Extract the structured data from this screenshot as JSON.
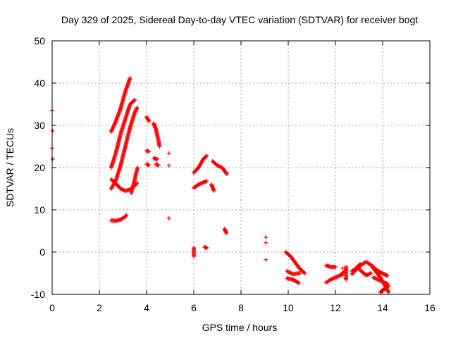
{
  "chart_data": {
    "type": "scatter",
    "title": "Day 329 of 2025, Sidereal Day-to-day VTEC variation (SDTVAR) for receiver bogt",
    "xlabel": "GPS time / hours",
    "ylabel": "SDTVAR / TECUs",
    "xlim": [
      0,
      16
    ],
    "ylim": [
      -10,
      50
    ],
    "x_ticks": [
      0,
      2,
      4,
      6,
      8,
      10,
      12,
      14,
      16
    ],
    "y_ticks": [
      -10,
      0,
      10,
      20,
      30,
      40,
      50
    ],
    "x_tick_labels": [
      "0",
      "2",
      "4",
      "6",
      "8",
      "10",
      "12",
      "14",
      "16"
    ],
    "y_tick_labels": [
      "-10",
      "0",
      "10",
      "20",
      "30",
      "40",
      "50"
    ],
    "grid": true,
    "legend": "none",
    "marker": "+",
    "color": "#ff0000",
    "segments": [
      [
        [
          0.0,
          33.5
        ],
        [
          0.02,
          28.7
        ],
        [
          0.0,
          24.6
        ],
        [
          0.02,
          22.0
        ]
      ],
      [
        [
          2.5,
          28.5
        ],
        [
          2.7,
          31.0
        ],
        [
          2.9,
          34.0
        ],
        [
          3.1,
          38.0
        ],
        [
          3.3,
          41.2
        ]
      ],
      [
        [
          2.5,
          20.0
        ],
        [
          2.7,
          23.5
        ],
        [
          2.9,
          28.0
        ],
        [
          3.1,
          31.5
        ],
        [
          3.3,
          35.0
        ],
        [
          3.5,
          36.0
        ]
      ],
      [
        [
          2.5,
          15.0
        ],
        [
          2.7,
          17.0
        ],
        [
          2.9,
          20.5
        ],
        [
          3.1,
          25.0
        ],
        [
          3.3,
          29.5
        ],
        [
          3.5,
          33.0
        ],
        [
          3.6,
          34.2
        ]
      ],
      [
        [
          2.5,
          17.2
        ],
        [
          2.7,
          16.2
        ],
        [
          2.9,
          15.0
        ],
        [
          3.1,
          14.5
        ],
        [
          3.3,
          14.8
        ],
        [
          3.5,
          15.8
        ],
        [
          3.6,
          16.3
        ]
      ],
      [
        [
          3.35,
          14.0
        ],
        [
          3.45,
          16.0
        ],
        [
          3.55,
          18.5
        ],
        [
          3.62,
          20.0
        ]
      ],
      [
        [
          2.5,
          7.5
        ],
        [
          2.7,
          7.4
        ],
        [
          2.9,
          7.7
        ],
        [
          3.05,
          8.2
        ],
        [
          3.15,
          8.7
        ]
      ],
      [
        [
          4.0,
          32.0
        ],
        [
          4.1,
          31.0
        ]
      ],
      [
        [
          4.3,
          30.5
        ],
        [
          4.4,
          29.0
        ],
        [
          4.5,
          26.5
        ],
        [
          4.55,
          25.0
        ]
      ],
      [
        [
          4.0,
          24.0
        ],
        [
          4.1,
          23.8
        ]
      ],
      [
        [
          4.3,
          22.2
        ],
        [
          4.45,
          22.0
        ]
      ],
      [
        [
          4.0,
          20.8
        ],
        [
          4.1,
          20.6
        ]
      ],
      [
        [
          4.4,
          20.8
        ],
        [
          4.5,
          20.6
        ]
      ],
      [
        [
          4.95,
          23.4
        ],
        [
          4.95,
          20.5
        ],
        [
          4.95,
          8.0
        ]
      ],
      [
        [
          6.0,
          18.8
        ],
        [
          6.2,
          20.0
        ],
        [
          6.4,
          22.0
        ],
        [
          6.55,
          22.8
        ]
      ],
      [
        [
          6.0,
          15.2
        ],
        [
          6.2,
          16.0
        ],
        [
          6.4,
          16.5
        ],
        [
          6.55,
          16.8
        ]
      ],
      [
        [
          6.0,
          1.0
        ],
        [
          6.0,
          0.0
        ],
        [
          6.0,
          -1.0
        ]
      ],
      [
        [
          6.45,
          1.2
        ],
        [
          6.55,
          1.0
        ]
      ],
      [
        [
          6.8,
          21.5
        ],
        [
          7.0,
          20.5
        ],
        [
          7.2,
          20.0
        ],
        [
          7.4,
          18.5
        ]
      ],
      [
        [
          6.75,
          16.0
        ],
        [
          6.82,
          15.0
        ],
        [
          6.85,
          14.5
        ]
      ],
      [
        [
          7.3,
          5.5
        ],
        [
          7.38,
          4.5
        ]
      ],
      [
        [
          9.05,
          3.5
        ],
        [
          9.05,
          2.2
        ],
        [
          9.05,
          -1.8
        ]
      ],
      [
        [
          9.9,
          0.0
        ],
        [
          10.1,
          -1.0
        ],
        [
          10.3,
          -2.5
        ],
        [
          10.5,
          -4.0
        ],
        [
          10.7,
          -5.0
        ]
      ],
      [
        [
          9.95,
          -4.5
        ],
        [
          10.2,
          -5.2
        ],
        [
          10.5,
          -5.0
        ]
      ],
      [
        [
          9.95,
          -6.2
        ],
        [
          10.2,
          -6.5
        ],
        [
          10.45,
          -7.3
        ]
      ],
      [
        [
          11.6,
          -3.2
        ],
        [
          11.8,
          -3.5
        ],
        [
          12.0,
          -3.5
        ]
      ],
      [
        [
          11.6,
          -7.2
        ],
        [
          11.8,
          -6.5
        ],
        [
          12.0,
          -6.0
        ],
        [
          12.2,
          -5.5
        ],
        [
          12.4,
          -4.5
        ]
      ],
      [
        [
          12.3,
          -3.8
        ],
        [
          12.3,
          -5.5
        ]
      ],
      [
        [
          12.45,
          -3.5
        ],
        [
          12.45,
          -4.5
        ],
        [
          12.45,
          -5.8
        ],
        [
          12.45,
          -6.5
        ]
      ],
      [
        [
          12.7,
          -5.2
        ],
        [
          12.9,
          -4.0
        ],
        [
          13.1,
          -3.0
        ],
        [
          13.3,
          -2.3
        ],
        [
          13.5,
          -3.0
        ],
        [
          13.7,
          -4.0
        ],
        [
          13.9,
          -4.8
        ],
        [
          14.1,
          -5.3
        ],
        [
          14.2,
          -5.6
        ]
      ],
      [
        [
          12.7,
          -4.5
        ],
        [
          12.9,
          -3.8
        ],
        [
          13.05,
          -2.8
        ]
      ],
      [
        [
          12.9,
          -3.5
        ],
        [
          13.1,
          -4.5
        ],
        [
          13.3,
          -5.5
        ],
        [
          13.5,
          -5.0
        ]
      ],
      [
        [
          13.5,
          -3.0
        ],
        [
          13.7,
          -4.5
        ],
        [
          13.9,
          -6.0
        ],
        [
          14.1,
          -8.0
        ],
        [
          14.25,
          -9.5
        ]
      ],
      [
        [
          13.6,
          -6.0
        ],
        [
          13.8,
          -6.5
        ],
        [
          14.0,
          -7.0
        ],
        [
          14.2,
          -7.5
        ]
      ],
      [
        [
          13.9,
          -9.5
        ],
        [
          14.0,
          -9.0
        ],
        [
          14.15,
          -8.5
        ],
        [
          14.25,
          -8.0
        ]
      ]
    ]
  }
}
